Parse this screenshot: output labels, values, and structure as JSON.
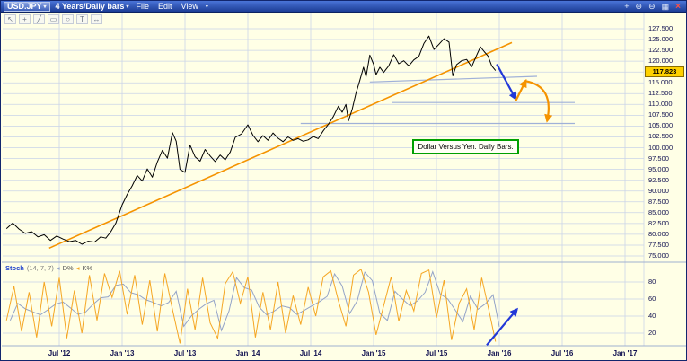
{
  "titlebar": {
    "symbol": "USD.JPY",
    "symbol_dropdown": "▾",
    "title": "4 Years/Daily bars",
    "title_dropdown": "▾",
    "menus": [
      "File",
      "Edit",
      "View"
    ],
    "menu_dropdown": "▾",
    "icons": {
      "crosshair": "+",
      "zoom_in": "⊕",
      "zoom_out": "⊖",
      "grid": "▦",
      "close": "×"
    }
  },
  "tools": {
    "glyphs": [
      "↖",
      "+",
      "╱",
      "▭",
      "○",
      "T",
      "↔"
    ]
  },
  "annotation": {
    "text": "Dollar Versus Yen. Daily Bars."
  },
  "stoch_header": {
    "name": "Stoch",
    "params": "(14, 7, 7)",
    "arrow": "◂",
    "d_label": "D%",
    "k_label": "K%"
  },
  "price_axis": {
    "current_label": "117.823",
    "current_value": 117.823
  },
  "colors": {
    "chart_bg": "#ffffe6",
    "grid": "#c9d3e8",
    "separator": "#9fb0d0",
    "price_line": "#000000",
    "trend": "#f59300",
    "level": "#9fb0d8",
    "arrow_blue": "#2238d8",
    "arrow_orange": "#f59300",
    "stoch_k": "#f5a623",
    "stoch_d": "#93a3c8",
    "tag_bg": "#ffd200",
    "annotation_border": "#00a000",
    "axis_text": "#101050"
  },
  "chart_data": [
    {
      "type": "line",
      "title": "USD.JPY - 4 Years / Daily bars",
      "x_ticks": [
        {
          "t": 2012.5,
          "label": "Jul '12"
        },
        {
          "t": 2013.0,
          "label": "Jan '13"
        },
        {
          "t": 2013.5,
          "label": "Jul '13"
        },
        {
          "t": 2014.0,
          "label": "Jan '14"
        },
        {
          "t": 2014.5,
          "label": "Jul '14"
        },
        {
          "t": 2015.0,
          "label": "Jan '15"
        },
        {
          "t": 2015.5,
          "label": "Jul '15"
        },
        {
          "t": 2016.0,
          "label": "Jan '16"
        },
        {
          "t": 2016.5,
          "label": "Jul '16"
        },
        {
          "t": 2017.0,
          "label": "Jan '17"
        }
      ],
      "y_grid": {
        "min": 75.0,
        "max": 127.5,
        "step": 2.5
      },
      "current_price": 117.823,
      "series": [
        {
          "name": "USD.JPY",
          "points": [
            [
              2012.08,
              81.3
            ],
            [
              2012.13,
              82.6
            ],
            [
              2012.18,
              81.2
            ],
            [
              2012.23,
              80.2
            ],
            [
              2012.28,
              80.6
            ],
            [
              2012.33,
              79.4
            ],
            [
              2012.38,
              79.9
            ],
            [
              2012.43,
              78.6
            ],
            [
              2012.48,
              79.6
            ],
            [
              2012.53,
              78.9
            ],
            [
              2012.58,
              78.3
            ],
            [
              2012.63,
              78.6
            ],
            [
              2012.68,
              77.7
            ],
            [
              2012.73,
              78.4
            ],
            [
              2012.78,
              78.2
            ],
            [
              2012.83,
              79.4
            ],
            [
              2012.87,
              79.1
            ],
            [
              2012.91,
              80.6
            ],
            [
              2012.95,
              82.6
            ],
            [
              2013.0,
              86.8
            ],
            [
              2013.04,
              89.2
            ],
            [
              2013.08,
              91.2
            ],
            [
              2013.12,
              93.6
            ],
            [
              2013.16,
              92.3
            ],
            [
              2013.2,
              95.1
            ],
            [
              2013.24,
              93.2
            ],
            [
              2013.28,
              96.7
            ],
            [
              2013.32,
              99.4
            ],
            [
              2013.36,
              97.6
            ],
            [
              2013.4,
              103.5
            ],
            [
              2013.43,
              101.5
            ],
            [
              2013.46,
              95.0
            ],
            [
              2013.5,
              94.3
            ],
            [
              2013.54,
              100.6
            ],
            [
              2013.58,
              97.9
            ],
            [
              2013.62,
              96.9
            ],
            [
              2013.66,
              99.6
            ],
            [
              2013.7,
              98.1
            ],
            [
              2013.74,
              96.8
            ],
            [
              2013.78,
              98.3
            ],
            [
              2013.82,
              97.2
            ],
            [
              2013.86,
              99.0
            ],
            [
              2013.9,
              102.4
            ],
            [
              2013.95,
              103.2
            ],
            [
              2014.0,
              105.3
            ],
            [
              2014.04,
              102.9
            ],
            [
              2014.08,
              101.4
            ],
            [
              2014.12,
              102.8
            ],
            [
              2014.16,
              101.7
            ],
            [
              2014.2,
              103.4
            ],
            [
              2014.24,
              102.2
            ],
            [
              2014.28,
              101.4
            ],
            [
              2014.32,
              102.5
            ],
            [
              2014.36,
              101.7
            ],
            [
              2014.4,
              102.1
            ],
            [
              2014.44,
              101.5
            ],
            [
              2014.48,
              101.8
            ],
            [
              2014.52,
              102.6
            ],
            [
              2014.56,
              102.1
            ],
            [
              2014.6,
              103.9
            ],
            [
              2014.64,
              105.4
            ],
            [
              2014.68,
              107.2
            ],
            [
              2014.72,
              109.6
            ],
            [
              2014.75,
              108.2
            ],
            [
              2014.78,
              110.0
            ],
            [
              2014.8,
              106.2
            ],
            [
              2014.83,
              108.9
            ],
            [
              2014.86,
              112.6
            ],
            [
              2014.89,
              115.5
            ],
            [
              2014.92,
              118.6
            ],
            [
              2014.94,
              116.4
            ],
            [
              2014.97,
              121.4
            ],
            [
              2015.0,
              119.3
            ],
            [
              2015.02,
              116.9
            ],
            [
              2015.05,
              118.6
            ],
            [
              2015.08,
              117.4
            ],
            [
              2015.12,
              118.9
            ],
            [
              2015.16,
              121.5
            ],
            [
              2015.2,
              119.4
            ],
            [
              2015.24,
              120.1
            ],
            [
              2015.28,
              118.9
            ],
            [
              2015.32,
              120.3
            ],
            [
              2015.36,
              121.1
            ],
            [
              2015.4,
              124.1
            ],
            [
              2015.44,
              125.8
            ],
            [
              2015.48,
              122.7
            ],
            [
              2015.52,
              123.9
            ],
            [
              2015.56,
              125.2
            ],
            [
              2015.6,
              124.4
            ],
            [
              2015.63,
              116.6
            ],
            [
              2015.66,
              119.2
            ],
            [
              2015.7,
              120.1
            ],
            [
              2015.74,
              120.4
            ],
            [
              2015.78,
              118.7
            ],
            [
              2015.82,
              121.4
            ],
            [
              2015.85,
              123.3
            ],
            [
              2015.88,
              122.2
            ],
            [
              2015.91,
              121.2
            ],
            [
              2015.94,
              118.9
            ],
            [
              2015.97,
              117.823
            ]
          ]
        }
      ],
      "trendline": {
        "from": [
          2012.42,
          76.8
        ],
        "to": [
          2016.1,
          124.3
        ]
      },
      "levels": [
        {
          "from": [
            2014.97,
            115.2
          ],
          "to": [
            2016.3,
            116.5
          ]
        },
        {
          "from": [
            2015.15,
            110.45
          ],
          "to": [
            2016.6,
            110.45
          ]
        },
        {
          "from": [
            2014.42,
            105.6
          ],
          "to": [
            2016.6,
            105.6
          ]
        }
      ],
      "arrows": [
        {
          "from": [
            2015.98,
            119.3
          ],
          "to": [
            2016.13,
            111.3
          ],
          "color": "blue",
          "curved": false
        },
        {
          "from": [
            2016.13,
            110.8
          ],
          "to": [
            2016.21,
            115.5
          ],
          "color": "orange",
          "curved": false
        },
        {
          "from": [
            2016.21,
            115.4
          ],
          "to": [
            2016.38,
            106.2
          ],
          "color": "orange",
          "curved": true
        }
      ],
      "annotation_anchor": {
        "t": 2015.31,
        "price": 102.0
      }
    },
    {
      "type": "line",
      "title": "Stochastic (14, 7, 7)",
      "y_ticks": [
        20,
        40,
        60,
        80
      ],
      "y_range": [
        0,
        100
      ],
      "series": [
        {
          "name": "K%",
          "points": [
            [
              2012.08,
              35
            ],
            [
              2012.14,
              75
            ],
            [
              2012.2,
              22
            ],
            [
              2012.26,
              68
            ],
            [
              2012.32,
              15
            ],
            [
              2012.38,
              80
            ],
            [
              2012.44,
              28
            ],
            [
              2012.5,
              85
            ],
            [
              2012.56,
              14
            ],
            [
              2012.62,
              70
            ],
            [
              2012.68,
              20
            ],
            [
              2012.74,
              88
            ],
            [
              2012.8,
              35
            ],
            [
              2012.86,
              90
            ],
            [
              2012.92,
              62
            ],
            [
              2012.98,
              93
            ],
            [
              2013.04,
              42
            ],
            [
              2013.1,
              88
            ],
            [
              2013.16,
              30
            ],
            [
              2013.22,
              82
            ],
            [
              2013.28,
              22
            ],
            [
              2013.34,
              90
            ],
            [
              2013.4,
              48
            ],
            [
              2013.46,
              8
            ],
            [
              2013.52,
              72
            ],
            [
              2013.58,
              24
            ],
            [
              2013.64,
              85
            ],
            [
              2013.7,
              32
            ],
            [
              2013.76,
              14
            ],
            [
              2013.82,
              78
            ],
            [
              2013.88,
              92
            ],
            [
              2013.94,
              55
            ],
            [
              2014.0,
              86
            ],
            [
              2014.06,
              15
            ],
            [
              2014.12,
              68
            ],
            [
              2014.18,
              24
            ],
            [
              2014.24,
              80
            ],
            [
              2014.3,
              20
            ],
            [
              2014.36,
              64
            ],
            [
              2014.42,
              30
            ],
            [
              2014.48,
              74
            ],
            [
              2014.54,
              40
            ],
            [
              2014.6,
              86
            ],
            [
              2014.66,
              93
            ],
            [
              2014.72,
              58
            ],
            [
              2014.78,
              28
            ],
            [
              2014.84,
              88
            ],
            [
              2014.9,
              95
            ],
            [
              2014.96,
              68
            ],
            [
              2015.02,
              18
            ],
            [
              2015.08,
              52
            ],
            [
              2015.14,
              86
            ],
            [
              2015.2,
              34
            ],
            [
              2015.26,
              70
            ],
            [
              2015.32,
              46
            ],
            [
              2015.38,
              90
            ],
            [
              2015.44,
              94
            ],
            [
              2015.5,
              38
            ],
            [
              2015.56,
              82
            ],
            [
              2015.62,
              12
            ],
            [
              2015.68,
              55
            ],
            [
              2015.74,
              72
            ],
            [
              2015.8,
              24
            ],
            [
              2015.86,
              85
            ],
            [
              2015.92,
              45
            ],
            [
              2015.97,
              10
            ]
          ]
        },
        {
          "name": "D%",
          "derived_from": "K%",
          "lag": 0.03
        }
      ],
      "arrow": {
        "from": [
          2015.9,
          6
        ],
        "to": [
          2016.14,
          48
        ],
        "color": "blue"
      }
    }
  ]
}
